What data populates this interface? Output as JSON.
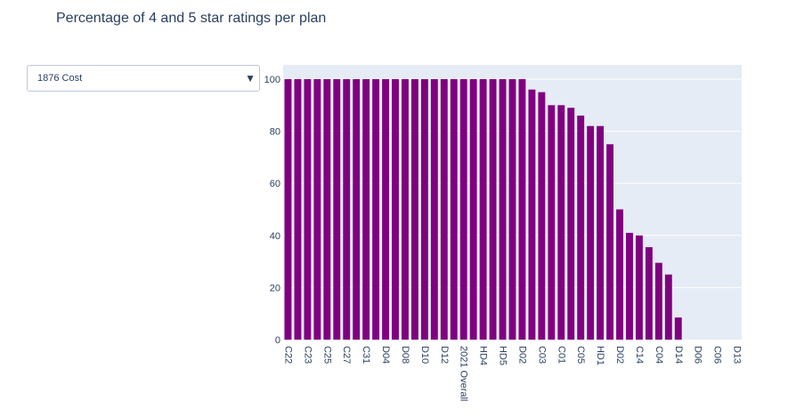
{
  "title": "Percentage of 4 and 5 star ratings per plan",
  "dropdown": {
    "selected": "1876 Cost",
    "arrow_icon": "triangle-down-icon"
  },
  "colors": {
    "bar": "#800080",
    "plot_bg": "#e5ecf6",
    "grid": "#ffffff",
    "text": "#2a3f5f"
  },
  "chart_data": {
    "type": "bar",
    "title": "Percentage of 4 and 5 star ratings per plan",
    "xlabel": "",
    "ylabel": "",
    "ylim": [
      0,
      100
    ],
    "yticks": [
      0,
      20,
      40,
      60,
      80,
      100
    ],
    "grid": true,
    "categories": [
      "C22",
      "",
      "C23",
      "",
      "C25",
      "",
      "C27",
      "",
      "C31",
      "",
      "D04",
      "",
      "D08",
      "",
      "D10",
      "",
      "D12",
      "",
      "2021 Overall",
      "",
      "HD4",
      "",
      "HD5",
      "",
      "D02",
      "",
      "C03",
      "",
      "C01",
      "",
      "C05",
      "",
      "HD1",
      "",
      "D02",
      "",
      "C14",
      "",
      "C04",
      "",
      "D14",
      "",
      "D06",
      "",
      "C06",
      "",
      "D13"
    ],
    "values": [
      100,
      100,
      100,
      100,
      100,
      100,
      100,
      100,
      100,
      100,
      100,
      100,
      100,
      100,
      100,
      100,
      100,
      100,
      100,
      100,
      100,
      100,
      100,
      100,
      100,
      96,
      95,
      90,
      90,
      89,
      86,
      82,
      82,
      75,
      50,
      41,
      40,
      35.5,
      29.5,
      25,
      8.5,
      0,
      0,
      0,
      0,
      0,
      0
    ]
  }
}
